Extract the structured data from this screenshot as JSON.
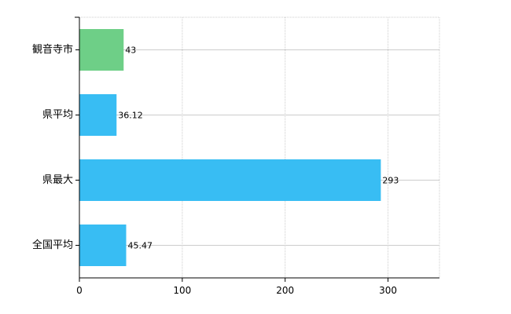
{
  "chart_data": {
    "type": "bar",
    "orientation": "horizontal",
    "categories": [
      "観音寺市",
      "県平均",
      "県最大",
      "全国平均"
    ],
    "values": [
      43,
      36.12,
      293,
      45.47
    ],
    "value_labels": [
      "43",
      "36.12",
      "293",
      "45.47"
    ],
    "bar_colors": [
      "#6ecf87",
      "#38bdf3",
      "#38bdf3",
      "#38bdf3"
    ],
    "xlim": [
      0,
      350
    ],
    "xticks": [
      0,
      100,
      200,
      300
    ],
    "xtick_labels": [
      "0",
      "100",
      "200",
      "300"
    ],
    "grid": true,
    "title": "",
    "xlabel": "",
    "ylabel": ""
  },
  "colors": {
    "highlight": "#6ecf87",
    "default": "#38bdf3",
    "grid": "#cccccc",
    "axis": "#000000"
  }
}
